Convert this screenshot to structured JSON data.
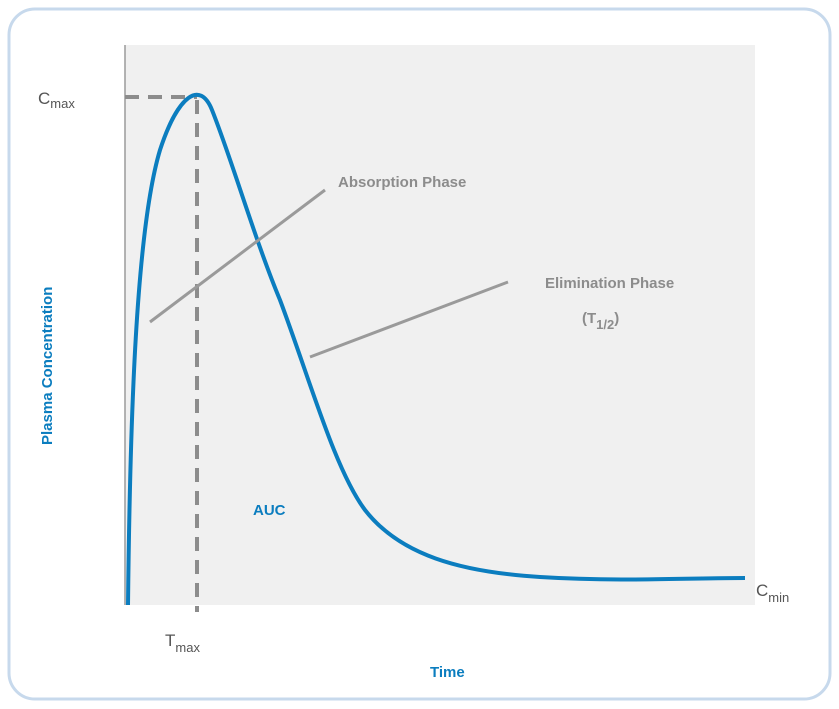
{
  "y_axis_label": "Plasma Concentration",
  "x_axis_label": "Time",
  "markers": {
    "c_max": {
      "symbol": "C",
      "subscript": "max"
    },
    "t_max": {
      "symbol": "T",
      "subscript": "max"
    },
    "c_min": {
      "symbol": "C",
      "subscript": "min"
    }
  },
  "annotations": {
    "absorption": "Absorption Phase",
    "elimination": "Elimination Phase",
    "half_life": {
      "open": "(T",
      "subscript": "1/2",
      "close": ")"
    }
  },
  "area_label": "AUC"
}
